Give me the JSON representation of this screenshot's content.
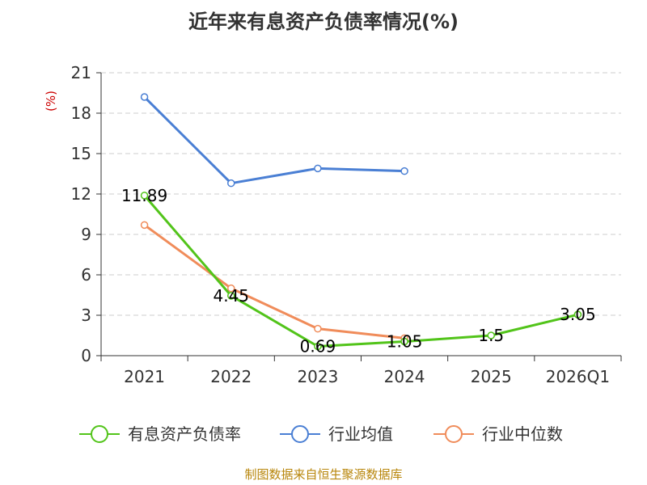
{
  "chart_data": {
    "type": "line",
    "title": "近年来有息资产负债率情况(%)",
    "ylabel": "(%)",
    "categories": [
      "2021",
      "2022",
      "2023",
      "2024",
      "2025",
      "2026Q1"
    ],
    "ylim": [
      0,
      21
    ],
    "yticks": [
      0,
      3,
      6,
      9,
      12,
      15,
      18,
      21
    ],
    "grid": true,
    "legend_position": "bottom",
    "series": [
      {
        "name": "有息资产负债率",
        "color": "#52c41a",
        "values": [
          11.89,
          4.45,
          0.69,
          1.05,
          1.5,
          3.05
        ],
        "labels": [
          "11.89",
          "4.45",
          "0.69",
          "1.05",
          "1.5",
          "3.05"
        ]
      },
      {
        "name": "行业均值",
        "color": "#4a7fd4",
        "values": [
          19.2,
          12.8,
          13.9,
          13.7,
          null,
          null
        ],
        "labels": []
      },
      {
        "name": "行业中位数",
        "color": "#f08c5a",
        "values": [
          9.7,
          5.0,
          2.0,
          1.3,
          null,
          null
        ],
        "labels": []
      }
    ]
  },
  "source": "制图数据来自恒生聚源数据库"
}
